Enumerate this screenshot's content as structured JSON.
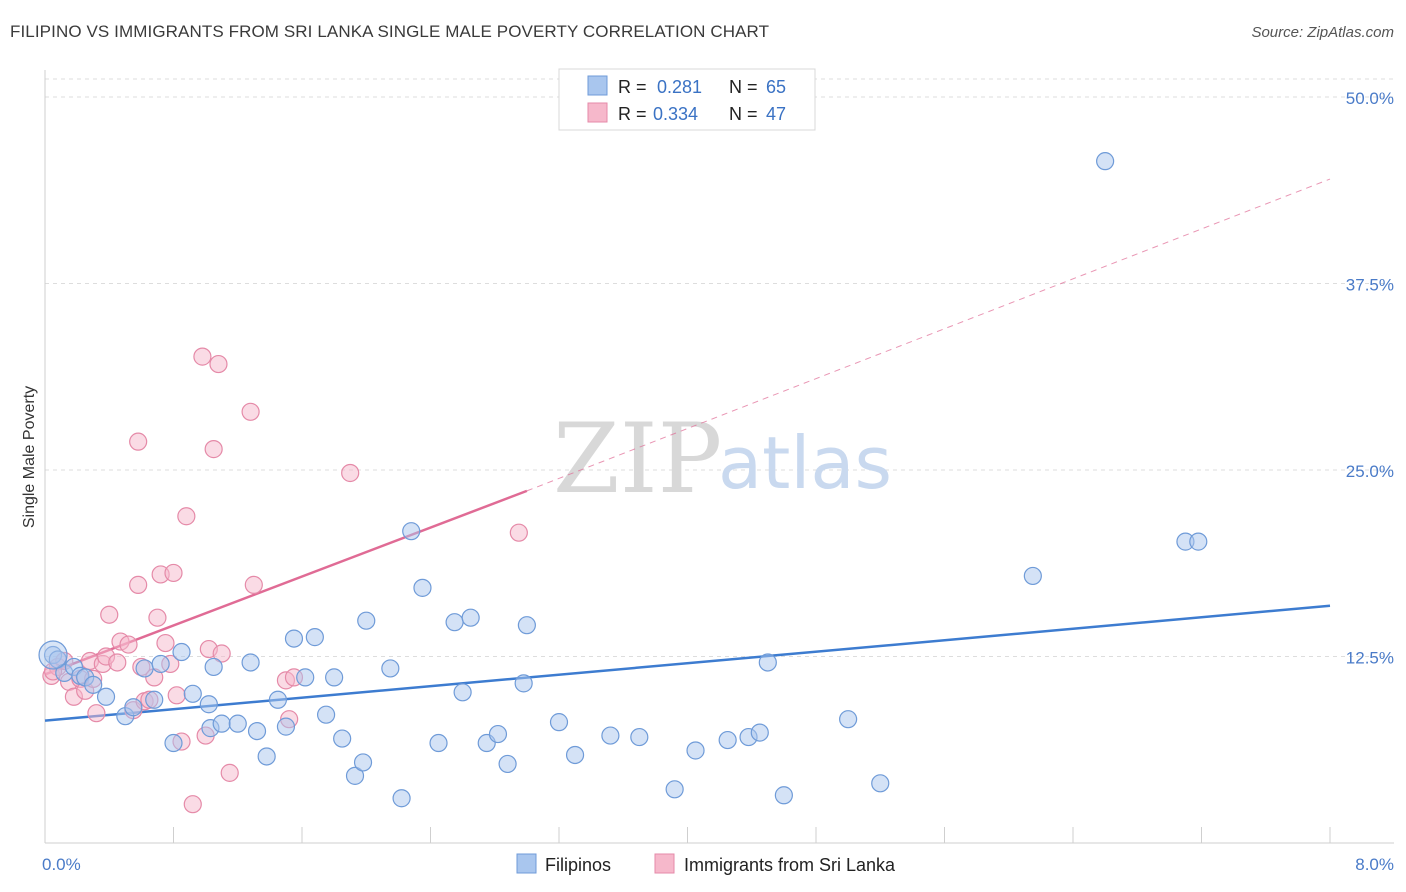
{
  "title": "FILIPINO VS IMMIGRANTS FROM SRI LANKA SINGLE MALE POVERTY CORRELATION CHART",
  "source": "Source: ZipAtlas.com",
  "watermark": {
    "zip": "ZIP",
    "atlas": "atlas"
  },
  "legend_top": [
    {
      "r_label": "R =",
      "r_value": "0.281",
      "n_label": "N =",
      "n_value": "65"
    },
    {
      "r_label": "R =",
      "r_value": "0.334",
      "n_label": "N =",
      "n_value": "47"
    }
  ],
  "colors": {
    "blue_fill": "#a9c6ee",
    "blue_stroke": "#6f9bd8",
    "blue_line": "#3d7cd0",
    "pink_fill": "#f6b8cb",
    "pink_stroke": "#e58aa8",
    "pink_line": "#e06b95",
    "axis_text": "#4a7bc8",
    "grid": "#dddddd"
  },
  "chart_data": {
    "type": "scatter",
    "title": "FILIPINO VS IMMIGRANTS FROM SRI LANKA SINGLE MALE POVERTY CORRELATION CHART",
    "xlabel": "",
    "ylabel": "Single Male Poverty",
    "xlim": [
      0,
      8
    ],
    "ylim": [
      0,
      52
    ],
    "x_tick_labels": [
      "0.0%",
      "8.0%"
    ],
    "y_ticks": [
      12.5,
      25.0,
      37.5,
      50.0
    ],
    "y_tick_labels": [
      "12.5%",
      "25.0%",
      "37.5%",
      "50.0%"
    ],
    "grid": true,
    "legend_placement": "top-center",
    "series": [
      {
        "name": "Filipinos",
        "r": 0.281,
        "n": 65,
        "trend": {
          "x": [
            0,
            8
          ],
          "y": [
            8.2,
            15.9
          ],
          "dashed_extension": false
        },
        "points": [
          [
            0.05,
            12.6
          ],
          [
            0.08,
            12.3
          ],
          [
            0.12,
            11.4
          ],
          [
            0.18,
            11.8
          ],
          [
            0.22,
            11.2
          ],
          [
            0.25,
            11.1
          ],
          [
            0.3,
            10.6
          ],
          [
            0.38,
            9.8
          ],
          [
            0.5,
            8.5
          ],
          [
            0.55,
            9.1
          ],
          [
            0.62,
            11.7
          ],
          [
            0.68,
            9.6
          ],
          [
            0.72,
            12.0
          ],
          [
            0.8,
            6.7
          ],
          [
            0.85,
            12.8
          ],
          [
            0.92,
            10.0
          ],
          [
            1.02,
            9.3
          ],
          [
            1.03,
            7.7
          ],
          [
            1.05,
            11.8
          ],
          [
            1.1,
            8.0
          ],
          [
            1.2,
            8.0
          ],
          [
            1.28,
            12.1
          ],
          [
            1.32,
            7.5
          ],
          [
            1.38,
            5.8
          ],
          [
            1.45,
            9.6
          ],
          [
            1.5,
            7.8
          ],
          [
            1.55,
            13.7
          ],
          [
            1.62,
            11.1
          ],
          [
            1.68,
            13.8
          ],
          [
            1.75,
            8.6
          ],
          [
            1.8,
            11.1
          ],
          [
            1.85,
            7.0
          ],
          [
            1.93,
            4.5
          ],
          [
            1.98,
            5.4
          ],
          [
            2.0,
            14.9
          ],
          [
            2.15,
            11.7
          ],
          [
            2.22,
            3.0
          ],
          [
            2.28,
            20.9
          ],
          [
            2.35,
            17.1
          ],
          [
            2.45,
            6.7
          ],
          [
            2.55,
            14.8
          ],
          [
            2.6,
            10.1
          ],
          [
            2.65,
            15.1
          ],
          [
            2.75,
            6.7
          ],
          [
            2.82,
            7.3
          ],
          [
            2.88,
            5.3
          ],
          [
            2.98,
            10.7
          ],
          [
            3.0,
            14.6
          ],
          [
            3.2,
            8.1
          ],
          [
            3.3,
            5.9
          ],
          [
            3.52,
            7.2
          ],
          [
            3.7,
            7.1
          ],
          [
            3.92,
            3.6
          ],
          [
            4.05,
            6.2
          ],
          [
            4.25,
            6.9
          ],
          [
            4.38,
            7.1
          ],
          [
            4.45,
            7.4
          ],
          [
            4.5,
            12.1
          ],
          [
            4.6,
            3.2
          ],
          [
            5.0,
            8.3
          ],
          [
            5.2,
            4.0
          ],
          [
            6.15,
            17.9
          ],
          [
            6.6,
            45.7
          ],
          [
            7.1,
            20.2
          ],
          [
            7.18,
            20.2
          ]
        ]
      },
      {
        "name": "Immigrants from Sri Lanka",
        "r": 0.334,
        "n": 47,
        "trend": {
          "x": [
            0,
            3.0
          ],
          "y": [
            11.3,
            23.6
          ],
          "dashed_extension_to": [
            8,
            44.5
          ]
        },
        "points": [
          [
            0.04,
            11.2
          ],
          [
            0.08,
            11.8
          ],
          [
            0.12,
            12.2
          ],
          [
            0.15,
            10.8
          ],
          [
            0.18,
            9.8
          ],
          [
            0.22,
            11.0
          ],
          [
            0.25,
            10.2
          ],
          [
            0.28,
            12.2
          ],
          [
            0.3,
            11.0
          ],
          [
            0.32,
            8.7
          ],
          [
            0.36,
            12.0
          ],
          [
            0.38,
            12.5
          ],
          [
            0.4,
            15.3
          ],
          [
            0.45,
            12.1
          ],
          [
            0.47,
            13.5
          ],
          [
            0.52,
            13.3
          ],
          [
            0.55,
            8.9
          ],
          [
            0.58,
            26.9
          ],
          [
            0.58,
            17.3
          ],
          [
            0.6,
            11.8
          ],
          [
            0.62,
            9.5
          ],
          [
            0.65,
            9.6
          ],
          [
            0.68,
            11.1
          ],
          [
            0.7,
            15.1
          ],
          [
            0.72,
            18.0
          ],
          [
            0.75,
            13.4
          ],
          [
            0.78,
            12.0
          ],
          [
            0.8,
            18.1
          ],
          [
            0.82,
            9.9
          ],
          [
            0.85,
            6.8
          ],
          [
            0.88,
            21.9
          ],
          [
            0.92,
            2.6
          ],
          [
            0.98,
            32.6
          ],
          [
            1.0,
            7.2
          ],
          [
            1.02,
            13.0
          ],
          [
            1.05,
            26.4
          ],
          [
            1.08,
            32.1
          ],
          [
            1.1,
            12.7
          ],
          [
            1.15,
            4.7
          ],
          [
            1.28,
            28.9
          ],
          [
            1.3,
            17.3
          ],
          [
            1.5,
            10.9
          ],
          [
            1.52,
            8.3
          ],
          [
            1.55,
            11.1
          ],
          [
            1.9,
            24.8
          ],
          [
            2.95,
            20.8
          ],
          [
            0.05,
            11.5
          ]
        ]
      }
    ]
  },
  "bottom_legend": [
    "Filipinos",
    "Immigrants from Sri Lanka"
  ]
}
